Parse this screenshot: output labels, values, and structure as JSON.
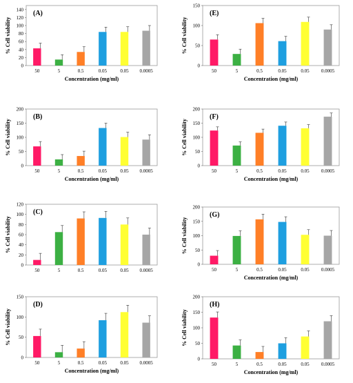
{
  "colors": [
    "#ff1a66",
    "#3cb043",
    "#ff7f27",
    "#1e9fe0",
    "#ffff33",
    "#a6a6a6"
  ],
  "chart_data": [
    {
      "type": "bar",
      "panel": "(A)",
      "xlabel": "Concentration (mg/ml)",
      "ylabel": "% Cell viability",
      "categories": [
        "50",
        "5",
        "0.5",
        "0.05",
        "0.05",
        "0.0005"
      ],
      "values": [
        43,
        15,
        34,
        84,
        84,
        87
      ],
      "errors": [
        13,
        12,
        13,
        12,
        13,
        13
      ],
      "ylim": [
        0,
        150
      ],
      "yticks": [
        0,
        20,
        40,
        60,
        80,
        100,
        120,
        140
      ]
    },
    {
      "type": "bar",
      "panel": "(B)",
      "xlabel": "Concentration (mg/ml)",
      "ylabel": "% Cell viability",
      "categories": [
        "50",
        "5",
        "0.5",
        "0.05",
        "0.05",
        "0.0005"
      ],
      "values": [
        68,
        22,
        34,
        133,
        101,
        92
      ],
      "errors": [
        17,
        17,
        17,
        17,
        17,
        17
      ],
      "ylim": [
        0,
        200
      ],
      "yticks": [
        0,
        50,
        100,
        150,
        200
      ]
    },
    {
      "type": "bar",
      "panel": "(C)",
      "xlabel": "",
      "ylabel": "% Cell viability",
      "categories": [
        "50",
        "5",
        "0.5",
        "0.05",
        "0.05",
        "0.0005"
      ],
      "values": [
        10,
        65,
        92,
        93,
        80,
        60
      ],
      "errors": [
        13,
        13,
        13,
        13,
        13,
        13
      ],
      "ylim": [
        0,
        120
      ],
      "yticks": [
        0,
        20,
        40,
        60,
        80,
        100,
        120
      ]
    },
    {
      "type": "bar",
      "panel": "(D)",
      "xlabel": "Concentration (mg/ml)",
      "ylabel": "% Cell viability",
      "categories": [
        "50",
        "5",
        "0.5",
        "0.05",
        "0.05",
        "0.0005"
      ],
      "values": [
        53,
        13,
        22,
        92,
        112,
        86
      ],
      "errors": [
        17,
        17,
        17,
        17,
        17,
        17
      ],
      "ylim": [
        0,
        150
      ],
      "yticks": [
        0,
        50,
        100,
        150
      ]
    },
    {
      "type": "bar",
      "panel": "(E)",
      "xlabel": "Concentration (mg/ml)",
      "ylabel": "% Cell viability",
      "categories": [
        "50",
        "5",
        "0.5",
        "0.05",
        "0.05",
        "0.0005"
      ],
      "values": [
        65,
        29,
        106,
        61,
        109,
        90
      ],
      "errors": [
        12,
        12,
        12,
        12,
        12,
        12
      ],
      "ylim": [
        0,
        150
      ],
      "yticks": [
        0,
        50,
        100,
        150
      ]
    },
    {
      "type": "bar",
      "panel": "(F)",
      "xlabel": "Concentration (mg/ml)",
      "ylabel": "% Cell viability",
      "categories": [
        "50",
        "5",
        "0.5",
        "0.05",
        "0.05",
        "0.0005"
      ],
      "values": [
        124,
        71,
        116,
        141,
        132,
        173
      ],
      "errors": [
        13,
        13,
        13,
        13,
        13,
        13
      ],
      "ylim": [
        0,
        200
      ],
      "yticks": [
        0,
        50,
        100,
        150,
        200
      ]
    },
    {
      "type": "bar",
      "panel": "(G)",
      "xlabel": "Concentration (mg/ml)",
      "ylabel": "% Cell viability",
      "categories": [
        "50",
        "5",
        "0.5",
        "0.05",
        "0.05",
        "0.0005"
      ],
      "values": [
        30,
        99,
        157,
        148,
        103,
        100
      ],
      "errors": [
        18,
        18,
        18,
        18,
        18,
        18
      ],
      "ylim": [
        0,
        200
      ],
      "yticks": [
        0,
        50,
        100,
        150,
        200
      ]
    },
    {
      "type": "bar",
      "panel": "(H)",
      "xlabel": "Concentration (mg/ml)",
      "ylabel": "% Cell viability",
      "categories": [
        "50",
        "5",
        "0.5",
        "0.05",
        "0.05",
        "0.0005"
      ],
      "values": [
        133,
        43,
        22,
        50,
        72,
        121
      ],
      "errors": [
        18,
        18,
        18,
        18,
        18,
        18
      ],
      "ylim": [
        0,
        200
      ],
      "yticks": [
        0,
        50,
        100,
        150,
        200
      ]
    }
  ]
}
